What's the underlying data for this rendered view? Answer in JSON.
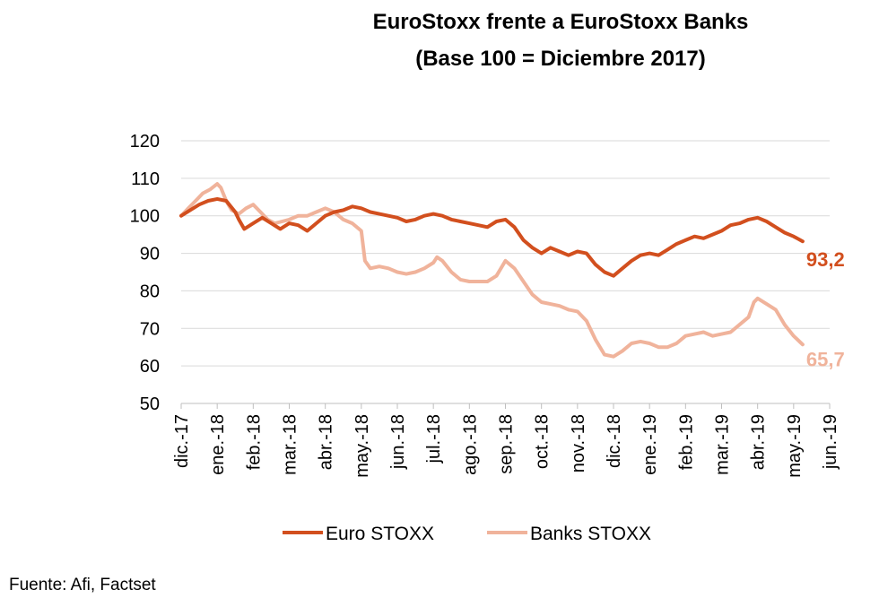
{
  "chart_data": {
    "type": "line",
    "title": "EuroStoxx frente a EuroStoxx Banks",
    "subtitle": "(Base 100 = Diciembre 2017)",
    "ylim": [
      50,
      120
    ],
    "yticks": [
      50,
      60,
      70,
      80,
      90,
      100,
      110,
      120
    ],
    "x_tick_labels": [
      "dic.-17",
      "ene.-18",
      "feb.-18",
      "mar.-18",
      "abr.-18",
      "may.-18",
      "jun.-18",
      "jul.-18",
      "ago.-18",
      "sep.-18",
      "oct.-18",
      "nov.-18",
      "dic.-18",
      "ene.-19",
      "feb.-19",
      "mar.-19",
      "abr.-19",
      "may.-19",
      "jun.-19"
    ],
    "grid": true,
    "legend_position": "bottom",
    "series": [
      {
        "name": "Euro STOXX",
        "color": "#d24f1e",
        "end_label": "93,2",
        "points": [
          [
            0,
            100
          ],
          [
            0.25,
            101.5
          ],
          [
            0.5,
            103
          ],
          [
            0.75,
            104
          ],
          [
            1,
            104.5
          ],
          [
            1.25,
            104
          ],
          [
            1.5,
            101
          ],
          [
            1.6,
            99
          ],
          [
            1.75,
            96.5
          ],
          [
            2,
            98
          ],
          [
            2.25,
            99.5
          ],
          [
            2.5,
            98
          ],
          [
            2.75,
            96.5
          ],
          [
            3,
            98
          ],
          [
            3.25,
            97.5
          ],
          [
            3.5,
            96
          ],
          [
            3.75,
            98
          ],
          [
            4,
            100
          ],
          [
            4.25,
            101
          ],
          [
            4.5,
            101.5
          ],
          [
            4.75,
            102.5
          ],
          [
            5,
            102
          ],
          [
            5.25,
            101
          ],
          [
            5.5,
            100.5
          ],
          [
            5.75,
            100
          ],
          [
            6,
            99.5
          ],
          [
            6.25,
            98.5
          ],
          [
            6.5,
            99
          ],
          [
            6.75,
            100
          ],
          [
            7,
            100.5
          ],
          [
            7.25,
            100
          ],
          [
            7.5,
            99
          ],
          [
            7.75,
            98.5
          ],
          [
            8,
            98
          ],
          [
            8.25,
            97.5
          ],
          [
            8.5,
            97
          ],
          [
            8.75,
            98.5
          ],
          [
            9,
            99
          ],
          [
            9.25,
            97
          ],
          [
            9.5,
            93.5
          ],
          [
            9.75,
            91.5
          ],
          [
            10,
            90
          ],
          [
            10.25,
            91.5
          ],
          [
            10.5,
            90.5
          ],
          [
            10.75,
            89.5
          ],
          [
            11,
            90.5
          ],
          [
            11.25,
            90
          ],
          [
            11.5,
            87
          ],
          [
            11.75,
            85
          ],
          [
            12,
            84
          ],
          [
            12.25,
            86
          ],
          [
            12.5,
            88
          ],
          [
            12.75,
            89.5
          ],
          [
            13,
            90
          ],
          [
            13.25,
            89.5
          ],
          [
            13.5,
            91
          ],
          [
            13.75,
            92.5
          ],
          [
            14,
            93.5
          ],
          [
            14.25,
            94.5
          ],
          [
            14.5,
            94
          ],
          [
            14.75,
            95
          ],
          [
            15,
            96
          ],
          [
            15.25,
            97.5
          ],
          [
            15.5,
            98
          ],
          [
            15.75,
            99
          ],
          [
            16,
            99.5
          ],
          [
            16.25,
            98.5
          ],
          [
            16.5,
            97
          ],
          [
            16.75,
            95.5
          ],
          [
            17,
            94.5
          ],
          [
            17.25,
            93.2
          ]
        ]
      },
      {
        "name": "Banks STOXX",
        "color": "#f0b39b",
        "end_label": "65,7",
        "points": [
          [
            0,
            100
          ],
          [
            0.2,
            102
          ],
          [
            0.4,
            104
          ],
          [
            0.6,
            106
          ],
          [
            0.8,
            107
          ],
          [
            1,
            108.5
          ],
          [
            1.1,
            107.5
          ],
          [
            1.25,
            104
          ],
          [
            1.4,
            101.5
          ],
          [
            1.6,
            100.5
          ],
          [
            1.8,
            102
          ],
          [
            2,
            103
          ],
          [
            2.2,
            101
          ],
          [
            2.4,
            99
          ],
          [
            2.6,
            98
          ],
          [
            2.8,
            98.5
          ],
          [
            3,
            99
          ],
          [
            3.25,
            100
          ],
          [
            3.5,
            100
          ],
          [
            3.75,
            101
          ],
          [
            4,
            102
          ],
          [
            4.25,
            101
          ],
          [
            4.5,
            99
          ],
          [
            4.75,
            98
          ],
          [
            5,
            96
          ],
          [
            5.1,
            88
          ],
          [
            5.25,
            86
          ],
          [
            5.5,
            86.5
          ],
          [
            5.75,
            86
          ],
          [
            6,
            85
          ],
          [
            6.25,
            84.5
          ],
          [
            6.5,
            85
          ],
          [
            6.75,
            86
          ],
          [
            7,
            87.5
          ],
          [
            7.1,
            89
          ],
          [
            7.25,
            88
          ],
          [
            7.5,
            85
          ],
          [
            7.75,
            83
          ],
          [
            8,
            82.5
          ],
          [
            8.25,
            82.5
          ],
          [
            8.5,
            82.5
          ],
          [
            8.75,
            84
          ],
          [
            9,
            88
          ],
          [
            9.25,
            86
          ],
          [
            9.5,
            82.5
          ],
          [
            9.75,
            79
          ],
          [
            10,
            77
          ],
          [
            10.25,
            76.5
          ],
          [
            10.5,
            76
          ],
          [
            10.75,
            75
          ],
          [
            11,
            74.5
          ],
          [
            11.25,
            72
          ],
          [
            11.5,
            67
          ],
          [
            11.75,
            63
          ],
          [
            12,
            62.5
          ],
          [
            12.25,
            64
          ],
          [
            12.5,
            66
          ],
          [
            12.75,
            66.5
          ],
          [
            13,
            66
          ],
          [
            13.25,
            65
          ],
          [
            13.5,
            65
          ],
          [
            13.75,
            66
          ],
          [
            14,
            68
          ],
          [
            14.25,
            68.5
          ],
          [
            14.5,
            69
          ],
          [
            14.75,
            68
          ],
          [
            15,
            68.5
          ],
          [
            15.25,
            69
          ],
          [
            15.5,
            71
          ],
          [
            15.75,
            73
          ],
          [
            15.9,
            77
          ],
          [
            16,
            78
          ],
          [
            16.25,
            76.5
          ],
          [
            16.5,
            75
          ],
          [
            16.75,
            71
          ],
          [
            17,
            68
          ],
          [
            17.25,
            65.7
          ]
        ]
      }
    ]
  },
  "source": "Fuente: Afi, Factset"
}
